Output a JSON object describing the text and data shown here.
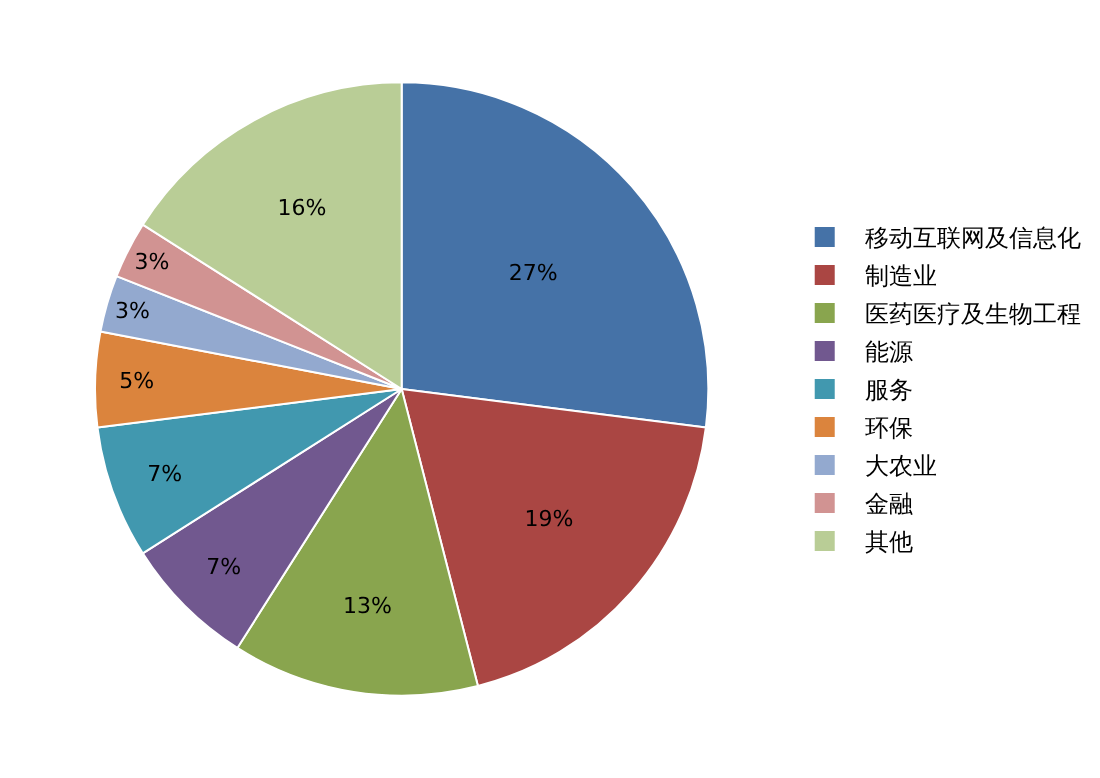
{
  "chart_data": {
    "type": "pie",
    "categories": [
      "移动互联网及信息化",
      "制造业",
      "医药医疗及生物工程",
      "能源",
      "服务",
      "环保",
      "大农业",
      "金融",
      "其他"
    ],
    "values": [
      27,
      19,
      13,
      7,
      7,
      5,
      3,
      3,
      16
    ],
    "colors": [
      "#4572a7",
      "#aa4643",
      "#89a54e",
      "#71588f",
      "#4198af",
      "#db843d",
      "#93a9cf",
      "#d19392",
      "#b9cd96"
    ],
    "value_labels": [
      "27%",
      "19%",
      "13%",
      "7%",
      "7%",
      "5%",
      "3%",
      "3%",
      "16%"
    ],
    "legend": "right"
  }
}
